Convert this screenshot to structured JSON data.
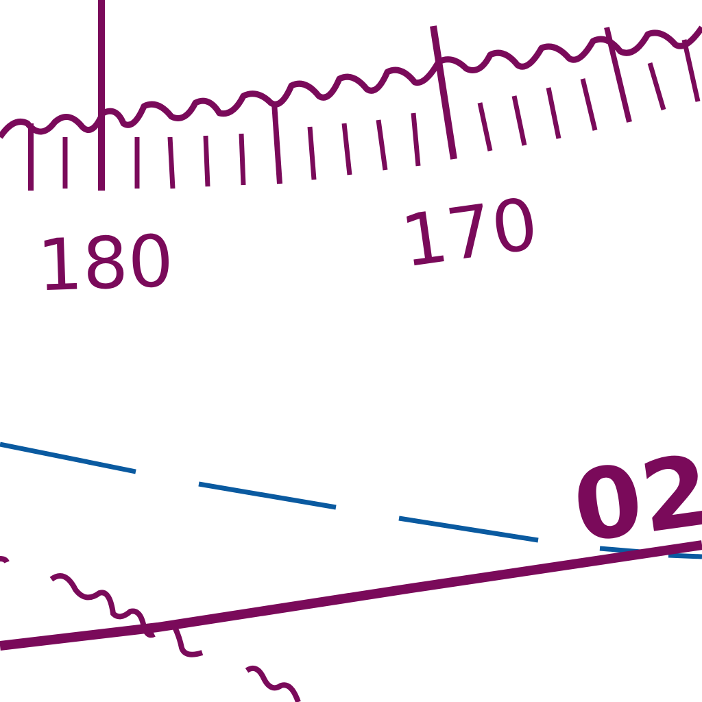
{
  "map": {
    "colors": {
      "aeronautical": "#7a0a5a",
      "boundary": "#0a5aa0",
      "background": "#ffffff"
    },
    "compass_scale": {
      "labels": [
        "180",
        "170"
      ]
    },
    "airway": {
      "label": "02"
    }
  }
}
